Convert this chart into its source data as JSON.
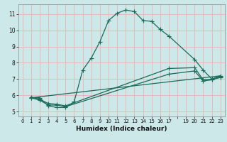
{
  "xlabel": "Humidex (Indice chaleur)",
  "background_color": "#cce8e8",
  "grid_color": "#e8b8b8",
  "line_color": "#1a6b5a",
  "xlim": [
    -0.5,
    23.5
  ],
  "ylim": [
    4.7,
    11.6
  ],
  "yticks": [
    5,
    6,
    7,
    8,
    9,
    10,
    11
  ],
  "xtick_labels": [
    "0",
    "1",
    "2",
    "3",
    "4",
    "5",
    "6",
    "7",
    "8",
    "9",
    "10",
    "11",
    "12",
    "13",
    "14",
    "15",
    "16",
    "17",
    "",
    "19",
    "20",
    "21",
    "22",
    "23"
  ],
  "xtick_positions": [
    0,
    1,
    2,
    3,
    4,
    5,
    6,
    7,
    8,
    9,
    10,
    11,
    12,
    13,
    14,
    15,
    16,
    17,
    18,
    19,
    20,
    21,
    22,
    23
  ],
  "curve1_x": [
    1,
    2,
    3,
    4,
    5,
    6,
    7,
    8,
    9,
    10,
    11,
    12,
    13,
    14,
    15,
    16,
    17,
    20,
    21,
    22,
    23
  ],
  "curve1_y": [
    5.85,
    5.85,
    5.35,
    5.25,
    5.25,
    5.6,
    7.55,
    8.3,
    9.3,
    10.6,
    11.05,
    11.25,
    11.15,
    10.6,
    10.55,
    10.05,
    9.65,
    8.2,
    7.55,
    7.0,
    7.2
  ],
  "curve2_x": [
    1,
    2,
    3,
    4,
    5,
    17,
    20,
    21,
    22,
    23
  ],
  "curve2_y": [
    5.9,
    5.75,
    5.5,
    5.45,
    5.35,
    7.65,
    7.7,
    6.95,
    7.0,
    7.15
  ],
  "curve3_x": [
    1,
    2,
    3,
    4,
    5,
    17,
    20,
    21,
    22,
    23
  ],
  "curve3_y": [
    5.85,
    5.7,
    5.4,
    5.4,
    5.3,
    7.3,
    7.5,
    6.88,
    6.95,
    7.1
  ],
  "curve4_x": [
    1,
    23
  ],
  "curve4_y": [
    5.85,
    7.2
  ]
}
